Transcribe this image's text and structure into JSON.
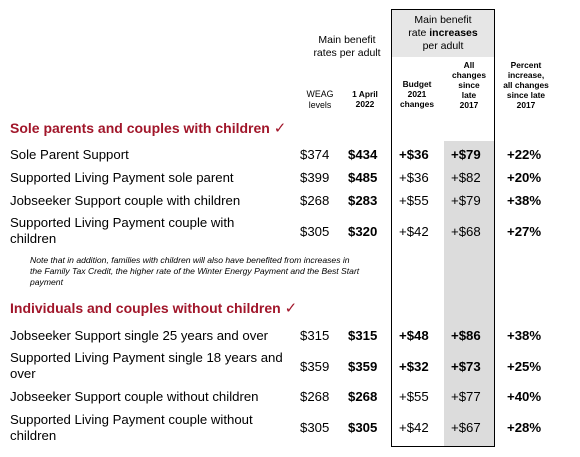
{
  "headers": {
    "main_rates": [
      "Main benefit",
      "rates per adult"
    ],
    "increases_prefix": "Main benefit",
    "increases_middle_a": "rate ",
    "increases_bold": "increases",
    "increases_suffix": "per adult",
    "weag": [
      "WEAG",
      "levels"
    ],
    "april": [
      "1 April",
      "2022"
    ],
    "budget": [
      "Budget",
      "2021",
      "changes"
    ],
    "all_changes": [
      "All",
      "changes",
      "since",
      "late",
      "2017"
    ],
    "percent": [
      "Percent",
      "increase,",
      "all changes",
      "since late",
      "2017"
    ]
  },
  "sections": [
    {
      "title": "Sole parents and couples with children",
      "check": "✓",
      "rows": [
        {
          "label": [
            "Sole Parent Support"
          ],
          "weag": "$374",
          "april": "$434",
          "budget": "+$36",
          "since2017": "+$79",
          "percent": "+22%",
          "bold_increases": true
        },
        {
          "label": [
            "Supported Living Payment sole parent"
          ],
          "weag": "$399",
          "april": "$485",
          "budget": "+$36",
          "since2017": "+$82",
          "percent": "+20%",
          "bold_increases": false
        },
        {
          "label": [
            "Jobseeker Support couple with children"
          ],
          "weag": "$268",
          "april": "$283",
          "budget": "+$55",
          "since2017": "+$79",
          "percent": "+38%",
          "bold_increases": false
        },
        {
          "label": [
            "Supported Living Payment couple with",
            "children"
          ],
          "weag": "$305",
          "april": "$320",
          "budget": "+$42",
          "since2017": "+$68",
          "percent": "+27%",
          "bold_increases": false
        }
      ],
      "note": "Note that in addition, families with children will also have benefited from increases in the Family Tax Credit, the higher rate of the Winter Energy Payment and the Best Start payment"
    },
    {
      "title": "Individuals and couples without children",
      "check": "✓",
      "rows": [
        {
          "label": [
            "Jobseeker Support single 25 years and over"
          ],
          "weag": "$315",
          "april": "$315",
          "budget": "+$48",
          "since2017": "+$86",
          "percent": "+38%",
          "bold_increases": true
        },
        {
          "label": [
            "Supported Living Payment single 18 years and",
            "over"
          ],
          "weag": "$359",
          "april": "$359",
          "budget": "+$32",
          "since2017": "+$73",
          "percent": "+25%",
          "bold_increases": true
        },
        {
          "label": [
            "Jobseeker Support couple without children"
          ],
          "weag": "$268",
          "april": "$268",
          "budget": "+$55",
          "since2017": "+$77",
          "percent": "+40%",
          "bold_increases": false
        },
        {
          "label": [
            "Supported Living Payment couple without",
            "children"
          ],
          "weag": "$305",
          "april": "$305",
          "budget": "+$42",
          "since2017": "+$67",
          "percent": "+28%",
          "bold_increases": false
        }
      ]
    }
  ],
  "colors": {
    "accent": "#a1162a",
    "header_shade": "#e6e6e6",
    "column_shade": "#dcdcdc"
  }
}
